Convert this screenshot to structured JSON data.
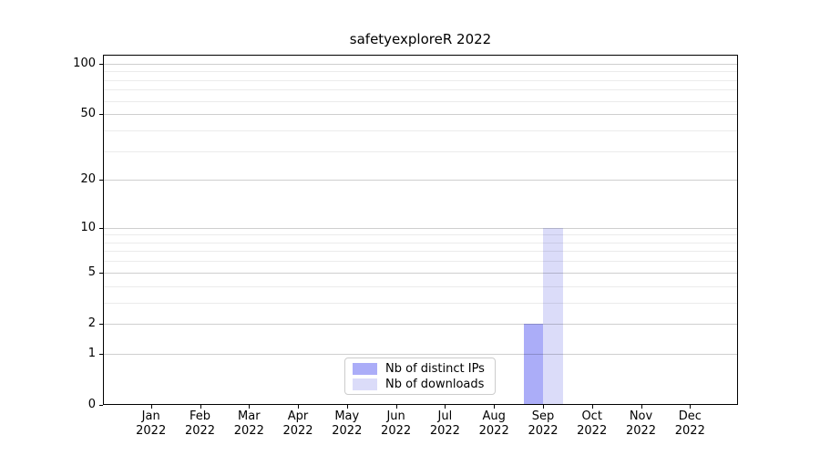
{
  "chart_data": {
    "type": "bar",
    "title": "safetyexploreR 2022",
    "categories": [
      "Jan 2022",
      "Feb 2022",
      "Mar 2022",
      "Apr 2022",
      "May 2022",
      "Jun 2022",
      "Jul 2022",
      "Aug 2022",
      "Sep 2022",
      "Oct 2022",
      "Nov 2022",
      "Dec 2022"
    ],
    "series": [
      {
        "name": "Nb of distinct IPs",
        "color": "#abadf8",
        "values": [
          0,
          0,
          0,
          0,
          0,
          0,
          0,
          0,
          2,
          0,
          0,
          0
        ]
      },
      {
        "name": "Nb of downloads",
        "color": "#dbdcf9",
        "values": [
          0,
          0,
          0,
          0,
          0,
          0,
          0,
          0,
          10,
          0,
          0,
          0
        ]
      }
    ],
    "xlabel": "",
    "ylabel": "",
    "y_scale": "log10(value+1)",
    "ylim": [
      0,
      113
    ],
    "y_major_ticks": [
      100,
      50,
      20,
      10,
      5,
      2,
      1,
      0
    ],
    "y_minor_gridlines": [
      90,
      80,
      70,
      60,
      40,
      30,
      9,
      8,
      7,
      6,
      4,
      3
    ],
    "grid": "horizontal",
    "legend_position": "lower center"
  }
}
